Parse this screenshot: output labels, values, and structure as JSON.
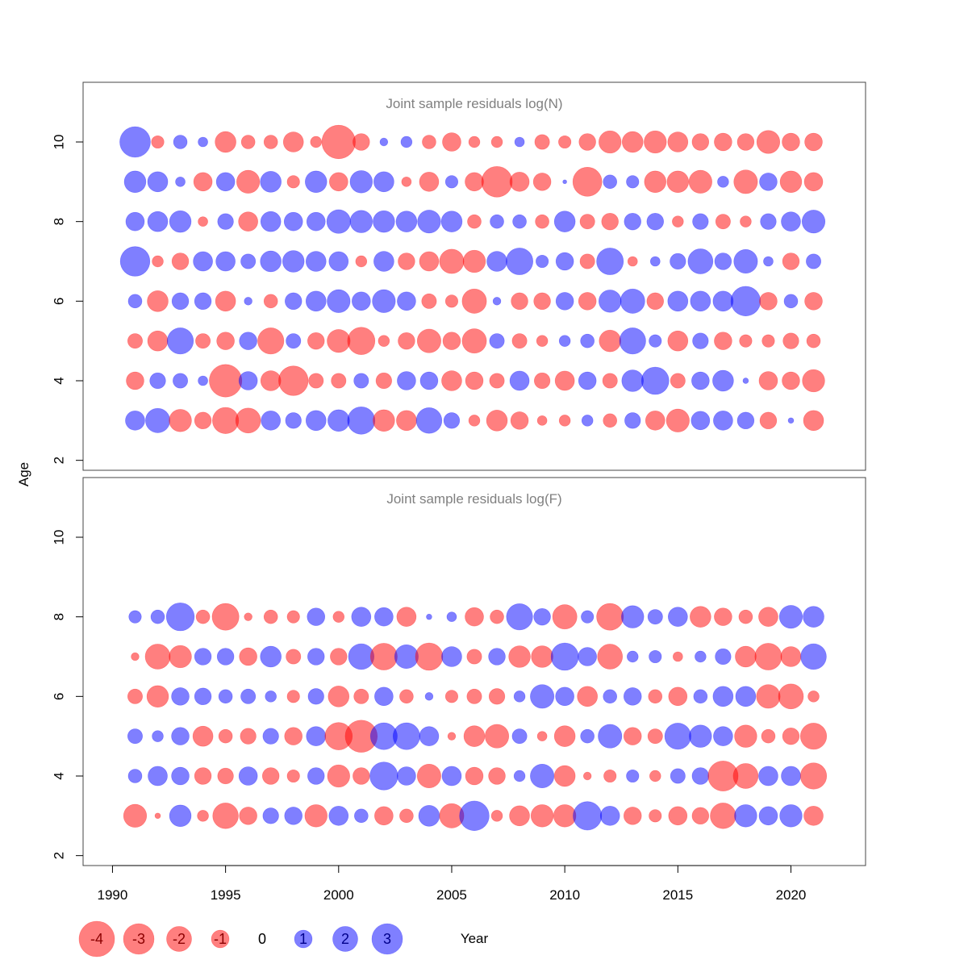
{
  "chart_data": {
    "type": "scatter",
    "subtype": "bubble",
    "xlabel": "Year",
    "ylabel": "Age",
    "xlim": [
      1988.7,
      2023.3
    ],
    "x_ticks": [
      1990,
      1995,
      2000,
      2005,
      2010,
      2015,
      2020
    ],
    "y_ticks": [
      2,
      4,
      6,
      8,
      10
    ],
    "positive_color": "#0000FF",
    "negative_color": "#FF0000",
    "fill_opacity": 0.5,
    "legend": {
      "placement": "bottom",
      "values": [
        -4,
        -3,
        -2,
        -1,
        0,
        1,
        2,
        3
      ],
      "labels": [
        "-4",
        "-3",
        "-2",
        "-1",
        "0",
        "1",
        "2",
        "3"
      ]
    },
    "years": [
      1991,
      1992,
      1993,
      1994,
      1995,
      1996,
      1997,
      1998,
      1999,
      2000,
      2001,
      2002,
      2003,
      2004,
      2005,
      2006,
      2007,
      2008,
      2009,
      2010,
      2011,
      2012,
      2013,
      2014,
      2015,
      2016,
      2017,
      2018,
      2019,
      2020,
      2021
    ],
    "panels": [
      {
        "title": "Joint sample residuals log(N)",
        "ylim": [
          1.75,
          11.5
        ],
        "ages": [
          3,
          4,
          5,
          6,
          7,
          8,
          9,
          10
        ],
        "residuals": {
          "10": [
            3.0,
            -0.5,
            0.6,
            0.3,
            -1.4,
            -0.6,
            -0.6,
            -1.3,
            -0.4,
            -3.6,
            -0.9,
            0.2,
            0.4,
            -0.6,
            -1.1,
            -0.4,
            -0.4,
            0.3,
            -0.7,
            -0.5,
            -0.9,
            -1.6,
            -1.4,
            -1.6,
            -1.3,
            -0.9,
            -1.0,
            -0.9,
            -1.7,
            -1.0,
            -1.0
          ],
          "9": [
            1.5,
            1.3,
            0.3,
            -1.1,
            1.1,
            -1.7,
            1.4,
            -0.5,
            1.5,
            -1.1,
            1.6,
            1.3,
            -0.3,
            -1.2,
            0.5,
            -1.1,
            -3.0,
            -1.2,
            -1.0,
            0.05,
            -2.7,
            0.6,
            0.5,
            -1.5,
            -1.5,
            -1.7,
            0.4,
            -1.8,
            1.0,
            -1.5,
            -1.1
          ],
          "8": [
            1.1,
            1.3,
            1.5,
            -0.3,
            0.8,
            -1.2,
            1.3,
            1.1,
            1.1,
            1.8,
            1.6,
            1.5,
            1.4,
            1.7,
            1.4,
            -0.6,
            0.6,
            0.6,
            -0.6,
            1.4,
            -0.7,
            -0.9,
            0.9,
            0.9,
            -0.4,
            0.8,
            -0.7,
            -0.4,
            0.8,
            1.2,
            1.7
          ],
          "7": [
            2.8,
            -0.4,
            -0.9,
            1.2,
            1.2,
            0.7,
            1.4,
            1.5,
            1.3,
            1.2,
            -0.4,
            1.3,
            -0.9,
            -1.2,
            -1.9,
            -1.6,
            1.3,
            2.3,
            0.5,
            1.0,
            -0.7,
            2.3,
            -0.3,
            0.3,
            0.8,
            2.0,
            0.9,
            1.8,
            0.3,
            -0.9,
            0.7
          ],
          "6": [
            0.6,
            -1.4,
            0.9,
            0.9,
            -1.3,
            0.2,
            -0.6,
            0.9,
            1.3,
            1.7,
            1.1,
            1.7,
            1.1,
            -0.7,
            -0.5,
            -1.9,
            0.2,
            -0.9,
            -0.9,
            1.0,
            -1.0,
            1.6,
            1.9,
            -0.9,
            1.3,
            1.3,
            1.3,
            2.8,
            -1.0,
            0.6,
            -1.0
          ],
          "5": [
            -0.7,
            -1.3,
            2.2,
            -0.7,
            -1.0,
            1.0,
            -2.2,
            0.7,
            -0.9,
            -1.7,
            -2.4,
            -0.4,
            -0.9,
            -1.8,
            -1.0,
            -1.9,
            0.7,
            -0.7,
            -0.4,
            0.4,
            0.6,
            -1.5,
            2.2,
            0.5,
            -1.3,
            0.8,
            -1.0,
            -0.5,
            -0.5,
            -0.8,
            -0.6
          ],
          "4": [
            -1.0,
            0.8,
            0.7,
            0.3,
            -3.4,
            1.1,
            -1.3,
            -2.8,
            -0.7,
            -0.7,
            0.7,
            -0.8,
            1.1,
            1.0,
            -1.3,
            -1.0,
            -0.7,
            1.2,
            -0.8,
            -1.2,
            1.0,
            -0.7,
            1.5,
            2.4,
            -0.7,
            1.0,
            1.4,
            0.1,
            -1.1,
            -1.0,
            -1.6
          ],
          "3": [
            1.2,
            1.9,
            -1.6,
            -0.9,
            -2.2,
            -2.0,
            1.2,
            0.8,
            1.3,
            1.5,
            2.4,
            -1.5,
            -1.3,
            2.1,
            0.8,
            -0.4,
            -1.4,
            -1.0,
            -0.3,
            -0.4,
            0.4,
            -0.6,
            0.8,
            -1.2,
            -1.7,
            1.1,
            1.2,
            0.9,
            -0.9,
            0.1,
            -1.3
          ]
        }
      },
      {
        "title": "Joint sample residuals log(F)",
        "ylim": [
          1.75,
          11.5
        ],
        "ages": [
          3,
          4,
          5,
          6,
          7,
          8
        ],
        "residuals": {
          "8": [
            0.5,
            0.6,
            2.5,
            -0.6,
            -2.3,
            -0.2,
            -0.6,
            -0.5,
            1.0,
            -0.4,
            1.2,
            1.1,
            -1.2,
            0.1,
            0.3,
            -1.1,
            -0.6,
            2.2,
            0.9,
            -1.9,
            0.5,
            -2.3,
            1.6,
            0.7,
            1.2,
            -1.4,
            -1.0,
            -0.6,
            -1.2,
            1.7,
            1.4
          ],
          "7": [
            -0.2,
            -2.0,
            -1.6,
            0.9,
            0.9,
            -1.0,
            1.4,
            -0.7,
            0.9,
            -0.9,
            2.1,
            -2.3,
            1.8,
            -2.4,
            1.3,
            -0.7,
            0.9,
            -1.5,
            -1.5,
            2.4,
            1.1,
            -2.0,
            0.4,
            0.5,
            -0.3,
            0.4,
            0.8,
            -1.4,
            -2.3,
            -1.3,
            2.1
          ],
          "6": [
            -0.7,
            -1.5,
            1.0,
            0.9,
            0.6,
            0.7,
            0.4,
            -0.5,
            0.8,
            -1.4,
            -0.7,
            1.1,
            -0.6,
            0.2,
            -0.5,
            -0.7,
            -0.8,
            0.4,
            1.8,
            1.1,
            -1.3,
            0.6,
            1.0,
            -0.6,
            -1.1,
            0.6,
            1.3,
            1.3,
            -1.8,
            -2.0,
            -0.4
          ],
          "5": [
            0.7,
            0.4,
            1.0,
            -1.3,
            -0.6,
            -0.8,
            0.8,
            -1.0,
            1.2,
            -2.4,
            -3.3,
            2.3,
            2.3,
            1.2,
            -0.2,
            -1.4,
            -1.8,
            0.7,
            -0.3,
            -1.4,
            0.6,
            1.8,
            -1.0,
            -0.7,
            2.2,
            1.6,
            1.2,
            -1.6,
            -0.6,
            -0.9,
            -2.2
          ],
          "4": [
            0.6,
            1.2,
            1.0,
            -0.9,
            -0.8,
            1.1,
            -0.9,
            -0.5,
            0.9,
            -1.6,
            -0.9,
            2.5,
            1.1,
            -1.8,
            1.2,
            -1.0,
            -0.9,
            0.4,
            1.8,
            -1.4,
            -0.2,
            -0.5,
            0.5,
            -0.4,
            0.7,
            0.9,
            -2.9,
            -2.0,
            1.2,
            1.2,
            -2.2
          ],
          "3": [
            -1.7,
            -0.1,
            1.5,
            -0.4,
            -2.1,
            -1.0,
            0.8,
            1.0,
            -1.6,
            1.2,
            0.6,
            -1.1,
            -0.6,
            1.4,
            -1.9,
            2.8,
            -0.4,
            -1.3,
            -1.6,
            -1.6,
            2.6,
            1.2,
            -1.0,
            -0.5,
            -1.1,
            -0.9,
            -2.1,
            1.6,
            1.1,
            1.6,
            -1.2
          ]
        }
      }
    ]
  }
}
